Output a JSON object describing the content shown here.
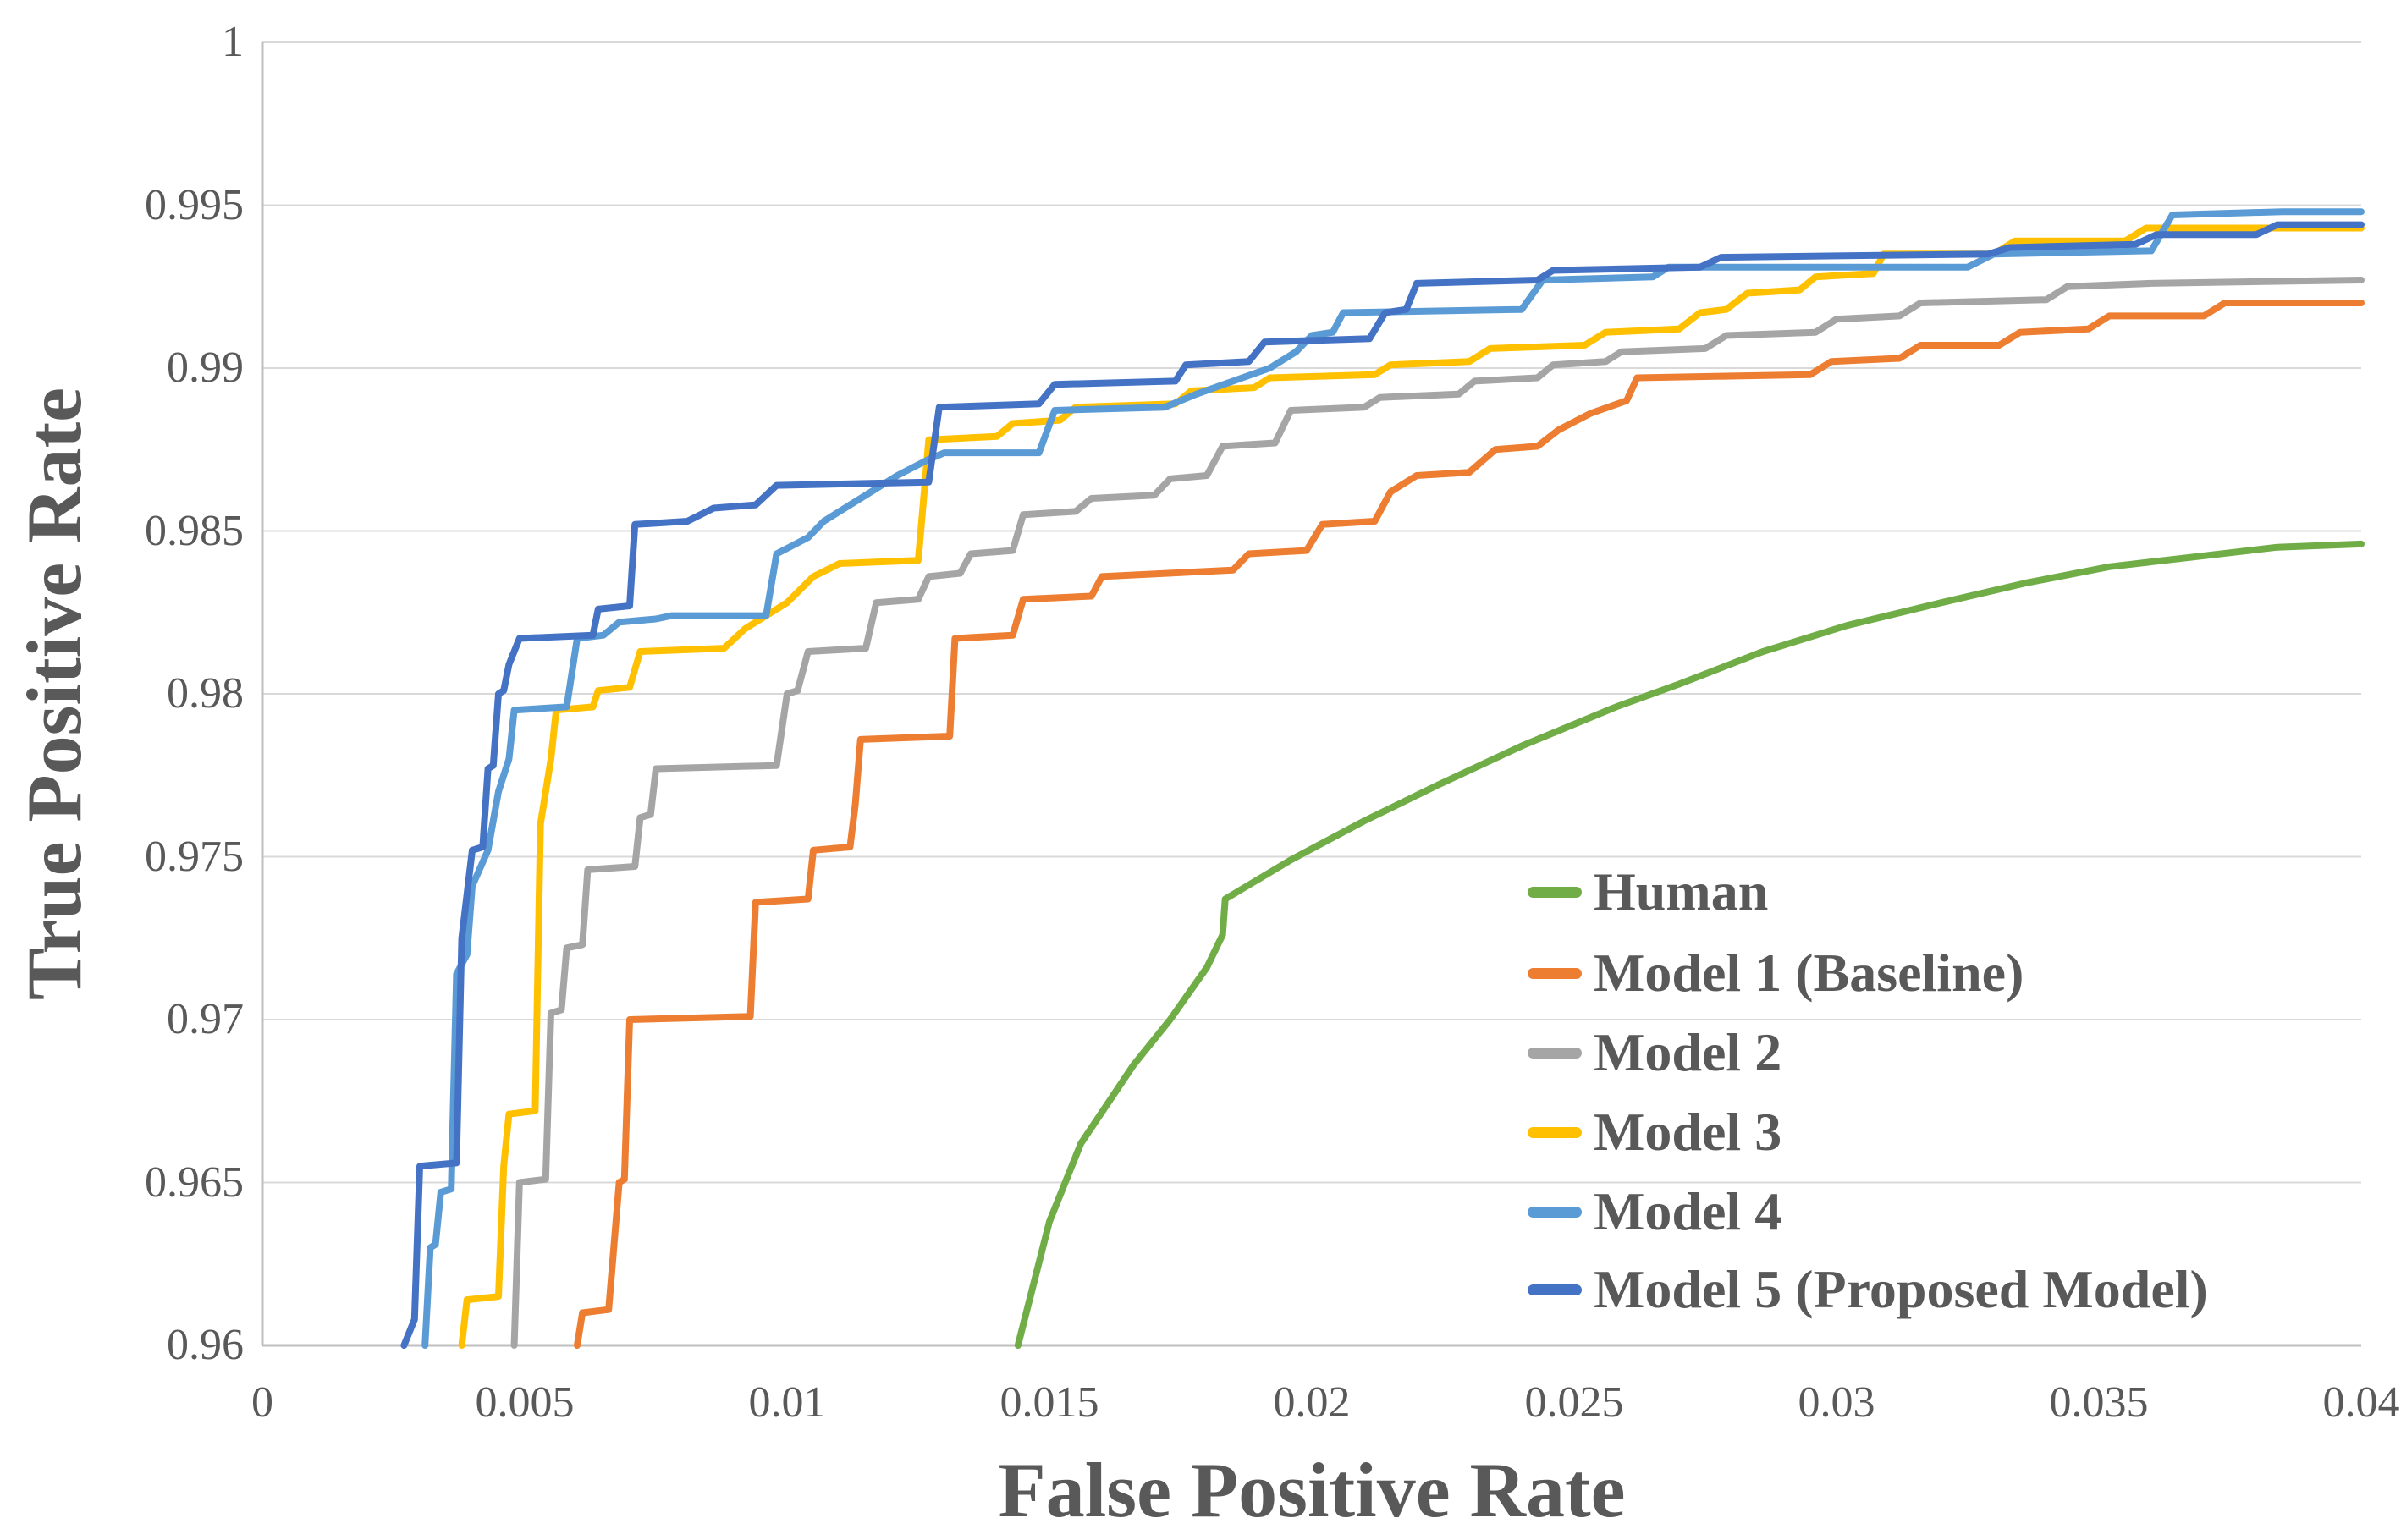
{
  "chart_data": {
    "type": "line",
    "subtype": "roc-step-curves",
    "title": "",
    "xlabel": "False Positive Rate",
    "ylabel": "True Positive Rate",
    "xlim": [
      0,
      0.04
    ],
    "ylim": [
      0.96,
      1.0
    ],
    "grid": true,
    "legend_position": "inside-right",
    "colors": {
      "text": "#595959",
      "gridline": "#D9D9D9",
      "axis_line": "#BFBFBF",
      "background": "#FFFFFF"
    },
    "xticks": [
      {
        "v": 0.0,
        "label": "0"
      },
      {
        "v": 0.005,
        "label": "0.005"
      },
      {
        "v": 0.01,
        "label": "0.01"
      },
      {
        "v": 0.015,
        "label": "0.015"
      },
      {
        "v": 0.02,
        "label": "0.02"
      },
      {
        "v": 0.025,
        "label": "0.025"
      },
      {
        "v": 0.03,
        "label": "0.03"
      },
      {
        "v": 0.035,
        "label": "0.035"
      },
      {
        "v": 0.04,
        "label": "0.04"
      }
    ],
    "yticks": [
      {
        "v": 1.0,
        "label": "1"
      },
      {
        "v": 0.995,
        "label": "0.995"
      },
      {
        "v": 0.99,
        "label": "0.99"
      },
      {
        "v": 0.985,
        "label": "0.985"
      },
      {
        "v": 0.98,
        "label": "0.98"
      },
      {
        "v": 0.975,
        "label": "0.975"
      },
      {
        "v": 0.97,
        "label": "0.97"
      },
      {
        "v": 0.965,
        "label": "0.965"
      },
      {
        "v": 0.96,
        "label": "0.96"
      }
    ],
    "series": [
      {
        "name": "Human",
        "color": "#70AD47",
        "points": [
          [
            0.0144,
            0.96
          ],
          [
            0.015,
            0.9638
          ],
          [
            0.0156,
            0.9662
          ],
          [
            0.0166,
            0.9686
          ],
          [
            0.0173,
            0.97
          ],
          [
            0.018,
            0.9716
          ],
          [
            0.0183,
            0.9726
          ],
          [
            0.01835,
            0.9737
          ],
          [
            0.0196,
            0.9749
          ],
          [
            0.021,
            0.9761
          ],
          [
            0.0224,
            0.9772
          ],
          [
            0.024,
            0.9784
          ],
          [
            0.0258,
            0.9796
          ],
          [
            0.027,
            0.9803
          ],
          [
            0.0286,
            0.9813
          ],
          [
            0.0302,
            0.9821
          ],
          [
            0.032,
            0.9828
          ],
          [
            0.0336,
            0.9834
          ],
          [
            0.0352,
            0.9839
          ],
          [
            0.0368,
            0.9842
          ],
          [
            0.0384,
            0.9845
          ],
          [
            0.04,
            0.9846
          ]
        ]
      },
      {
        "name": "Model 1 (Baseline)",
        "color": "#ED7D31",
        "points": [
          [
            0.006,
            0.96
          ],
          [
            0.0061,
            0.961
          ],
          [
            0.0066,
            0.9611
          ],
          [
            0.0068,
            0.965
          ],
          [
            0.0069,
            0.9651
          ],
          [
            0.007,
            0.97
          ],
          [
            0.0093,
            0.9701
          ],
          [
            0.0094,
            0.9736
          ],
          [
            0.0104,
            0.9737
          ],
          [
            0.0105,
            0.9752
          ],
          [
            0.0112,
            0.9753
          ],
          [
            0.0113,
            0.9766
          ],
          [
            0.0114,
            0.9786
          ],
          [
            0.0131,
            0.9787
          ],
          [
            0.0132,
            0.9817
          ],
          [
            0.0143,
            0.9818
          ],
          [
            0.0145,
            0.9829
          ],
          [
            0.0158,
            0.983
          ],
          [
            0.016,
            0.9836
          ],
          [
            0.0185,
            0.9838
          ],
          [
            0.0188,
            0.9843
          ],
          [
            0.0199,
            0.9844
          ],
          [
            0.0202,
            0.9852
          ],
          [
            0.0212,
            0.9853
          ],
          [
            0.0215,
            0.9862
          ],
          [
            0.022,
            0.9867
          ],
          [
            0.023,
            0.9868
          ],
          [
            0.0235,
            0.9875
          ],
          [
            0.0243,
            0.9876
          ],
          [
            0.0247,
            0.9881
          ],
          [
            0.0253,
            0.9886
          ],
          [
            0.026,
            0.989
          ],
          [
            0.0262,
            0.9897
          ],
          [
            0.0295,
            0.9898
          ],
          [
            0.0299,
            0.9902
          ],
          [
            0.0312,
            0.9903
          ],
          [
            0.0316,
            0.9907
          ],
          [
            0.0331,
            0.9907
          ],
          [
            0.0335,
            0.9911
          ],
          [
            0.0348,
            0.9912
          ],
          [
            0.0352,
            0.9916
          ],
          [
            0.037,
            0.9916
          ],
          [
            0.0374,
            0.992
          ],
          [
            0.04,
            0.992
          ]
        ]
      },
      {
        "name": "Model 2",
        "color": "#A5A5A5",
        "points": [
          [
            0.0048,
            0.96
          ],
          [
            0.0049,
            0.965
          ],
          [
            0.0054,
            0.9651
          ],
          [
            0.0055,
            0.9702
          ],
          [
            0.0057,
            0.9703
          ],
          [
            0.0058,
            0.9722
          ],
          [
            0.0061,
            0.9723
          ],
          [
            0.0062,
            0.9746
          ],
          [
            0.0071,
            0.9747
          ],
          [
            0.0072,
            0.9762
          ],
          [
            0.0074,
            0.9763
          ],
          [
            0.0075,
            0.9777
          ],
          [
            0.0098,
            0.9778
          ],
          [
            0.01,
            0.98
          ],
          [
            0.0102,
            0.9801
          ],
          [
            0.0104,
            0.9813
          ],
          [
            0.0115,
            0.9814
          ],
          [
            0.0117,
            0.9828
          ],
          [
            0.0125,
            0.9829
          ],
          [
            0.0127,
            0.9836
          ],
          [
            0.0133,
            0.9837
          ],
          [
            0.0135,
            0.9843
          ],
          [
            0.0143,
            0.9844
          ],
          [
            0.0145,
            0.9855
          ],
          [
            0.0155,
            0.9856
          ],
          [
            0.0158,
            0.986
          ],
          [
            0.017,
            0.9861
          ],
          [
            0.0173,
            0.9866
          ],
          [
            0.018,
            0.9867
          ],
          [
            0.0183,
            0.9876
          ],
          [
            0.0193,
            0.9877
          ],
          [
            0.0196,
            0.9887
          ],
          [
            0.021,
            0.9888
          ],
          [
            0.0213,
            0.9891
          ],
          [
            0.0228,
            0.9892
          ],
          [
            0.0231,
            0.9896
          ],
          [
            0.0243,
            0.9897
          ],
          [
            0.0246,
            0.9901
          ],
          [
            0.0256,
            0.9902
          ],
          [
            0.0259,
            0.9905
          ],
          [
            0.0275,
            0.9906
          ],
          [
            0.0279,
            0.991
          ],
          [
            0.0296,
            0.9911
          ],
          [
            0.03,
            0.9915
          ],
          [
            0.0312,
            0.9916
          ],
          [
            0.0316,
            0.992
          ],
          [
            0.034,
            0.9921
          ],
          [
            0.0344,
            0.9925
          ],
          [
            0.036,
            0.9926
          ],
          [
            0.04,
            0.9927
          ]
        ]
      },
      {
        "name": "Model 3",
        "color": "#FFC000",
        "points": [
          [
            0.0038,
            0.96
          ],
          [
            0.0039,
            0.9614
          ],
          [
            0.0045,
            0.9615
          ],
          [
            0.0046,
            0.9655
          ],
          [
            0.0047,
            0.9671
          ],
          [
            0.0052,
            0.9672
          ],
          [
            0.0053,
            0.976
          ],
          [
            0.0055,
            0.978
          ],
          [
            0.0056,
            0.9795
          ],
          [
            0.0063,
            0.9796
          ],
          [
            0.0064,
            0.9801
          ],
          [
            0.007,
            0.9802
          ],
          [
            0.0072,
            0.9813
          ],
          [
            0.0088,
            0.9814
          ],
          [
            0.0092,
            0.982
          ],
          [
            0.01,
            0.9828
          ],
          [
            0.0105,
            0.9836
          ],
          [
            0.011,
            0.984
          ],
          [
            0.0125,
            0.9841
          ],
          [
            0.0127,
            0.9878
          ],
          [
            0.014,
            0.9879
          ],
          [
            0.0143,
            0.9883
          ],
          [
            0.0152,
            0.9884
          ],
          [
            0.0155,
            0.9888
          ],
          [
            0.0174,
            0.9889
          ],
          [
            0.0177,
            0.9893
          ],
          [
            0.0189,
            0.9894
          ],
          [
            0.0192,
            0.9897
          ],
          [
            0.0212,
            0.9898
          ],
          [
            0.0215,
            0.9901
          ],
          [
            0.023,
            0.9902
          ],
          [
            0.0234,
            0.9906
          ],
          [
            0.0252,
            0.9907
          ],
          [
            0.0256,
            0.9911
          ],
          [
            0.027,
            0.9912
          ],
          [
            0.0274,
            0.9917
          ],
          [
            0.0279,
            0.9918
          ],
          [
            0.0283,
            0.9923
          ],
          [
            0.0293,
            0.9924
          ],
          [
            0.0296,
            0.9928
          ],
          [
            0.0307,
            0.9929
          ],
          [
            0.0309,
            0.9935
          ],
          [
            0.033,
            0.9935
          ],
          [
            0.0334,
            0.9939
          ],
          [
            0.0355,
            0.9939
          ],
          [
            0.0359,
            0.9943
          ],
          [
            0.04,
            0.9943
          ]
        ]
      },
      {
        "name": "Model 4",
        "color": "#5B9BD5",
        "points": [
          [
            0.0031,
            0.96
          ],
          [
            0.0032,
            0.963
          ],
          [
            0.0033,
            0.9631
          ],
          [
            0.0034,
            0.9647
          ],
          [
            0.0036,
            0.9648
          ],
          [
            0.0037,
            0.9714
          ],
          [
            0.0039,
            0.972
          ],
          [
            0.004,
            0.9741
          ],
          [
            0.0043,
            0.9752
          ],
          [
            0.0045,
            0.977
          ],
          [
            0.0047,
            0.978
          ],
          [
            0.0048,
            0.9795
          ],
          [
            0.0058,
            0.9796
          ],
          [
            0.006,
            0.9817
          ],
          [
            0.0065,
            0.9818
          ],
          [
            0.0068,
            0.9822
          ],
          [
            0.0075,
            0.9823
          ],
          [
            0.0078,
            0.9824
          ],
          [
            0.0096,
            0.9824
          ],
          [
            0.0098,
            0.9843
          ],
          [
            0.0104,
            0.9848
          ],
          [
            0.0107,
            0.9853
          ],
          [
            0.0112,
            0.9858
          ],
          [
            0.0116,
            0.9862
          ],
          [
            0.0121,
            0.9867
          ],
          [
            0.0127,
            0.9872
          ],
          [
            0.013,
            0.9874
          ],
          [
            0.0148,
            0.9874
          ],
          [
            0.0151,
            0.9887
          ],
          [
            0.0172,
            0.9888
          ],
          [
            0.0178,
            0.9892
          ],
          [
            0.0185,
            0.9896
          ],
          [
            0.0192,
            0.99
          ],
          [
            0.0197,
            0.9905
          ],
          [
            0.02,
            0.991
          ],
          [
            0.0204,
            0.9911
          ],
          [
            0.0206,
            0.9917
          ],
          [
            0.024,
            0.9918
          ],
          [
            0.0244,
            0.9927
          ],
          [
            0.0265,
            0.9928
          ],
          [
            0.0268,
            0.9931
          ],
          [
            0.0325,
            0.9931
          ],
          [
            0.033,
            0.9935
          ],
          [
            0.036,
            0.9936
          ],
          [
            0.0364,
            0.9947
          ],
          [
            0.0385,
            0.9948
          ],
          [
            0.04,
            0.9948
          ]
        ]
      },
      {
        "name": "Model 5 (Proposed Model)",
        "color": "#4472C4",
        "points": [
          [
            0.0027,
            0.96
          ],
          [
            0.0029,
            0.9608
          ],
          [
            0.003,
            0.9655
          ],
          [
            0.0037,
            0.9656
          ],
          [
            0.0038,
            0.9725
          ],
          [
            0.004,
            0.9752
          ],
          [
            0.0042,
            0.9753
          ],
          [
            0.0043,
            0.9777
          ],
          [
            0.0044,
            0.9778
          ],
          [
            0.0045,
            0.98
          ],
          [
            0.0046,
            0.9801
          ],
          [
            0.0047,
            0.9809
          ],
          [
            0.0049,
            0.9817
          ],
          [
            0.0063,
            0.9818
          ],
          [
            0.0064,
            0.9826
          ],
          [
            0.007,
            0.9827
          ],
          [
            0.0071,
            0.9852
          ],
          [
            0.0081,
            0.9853
          ],
          [
            0.0086,
            0.9857
          ],
          [
            0.0094,
            0.9858
          ],
          [
            0.0098,
            0.9864
          ],
          [
            0.0127,
            0.9865
          ],
          [
            0.0129,
            0.9888
          ],
          [
            0.0148,
            0.9889
          ],
          [
            0.0151,
            0.9895
          ],
          [
            0.0174,
            0.9896
          ],
          [
            0.0176,
            0.9901
          ],
          [
            0.0188,
            0.9902
          ],
          [
            0.0191,
            0.9908
          ],
          [
            0.0211,
            0.9909
          ],
          [
            0.0214,
            0.9917
          ],
          [
            0.0218,
            0.9918
          ],
          [
            0.022,
            0.9926
          ],
          [
            0.0243,
            0.9927
          ],
          [
            0.0246,
            0.993
          ],
          [
            0.0274,
            0.9931
          ],
          [
            0.0278,
            0.9934
          ],
          [
            0.0329,
            0.9935
          ],
          [
            0.0333,
            0.9937
          ],
          [
            0.0357,
            0.9938
          ],
          [
            0.0361,
            0.9941
          ],
          [
            0.038,
            0.9941
          ],
          [
            0.0384,
            0.9944
          ],
          [
            0.04,
            0.9944
          ]
        ]
      }
    ],
    "legend_rows_y": [
      1054,
      1150,
      1244,
      1338,
      1432,
      1524
    ],
    "legend_x": 1805
  }
}
